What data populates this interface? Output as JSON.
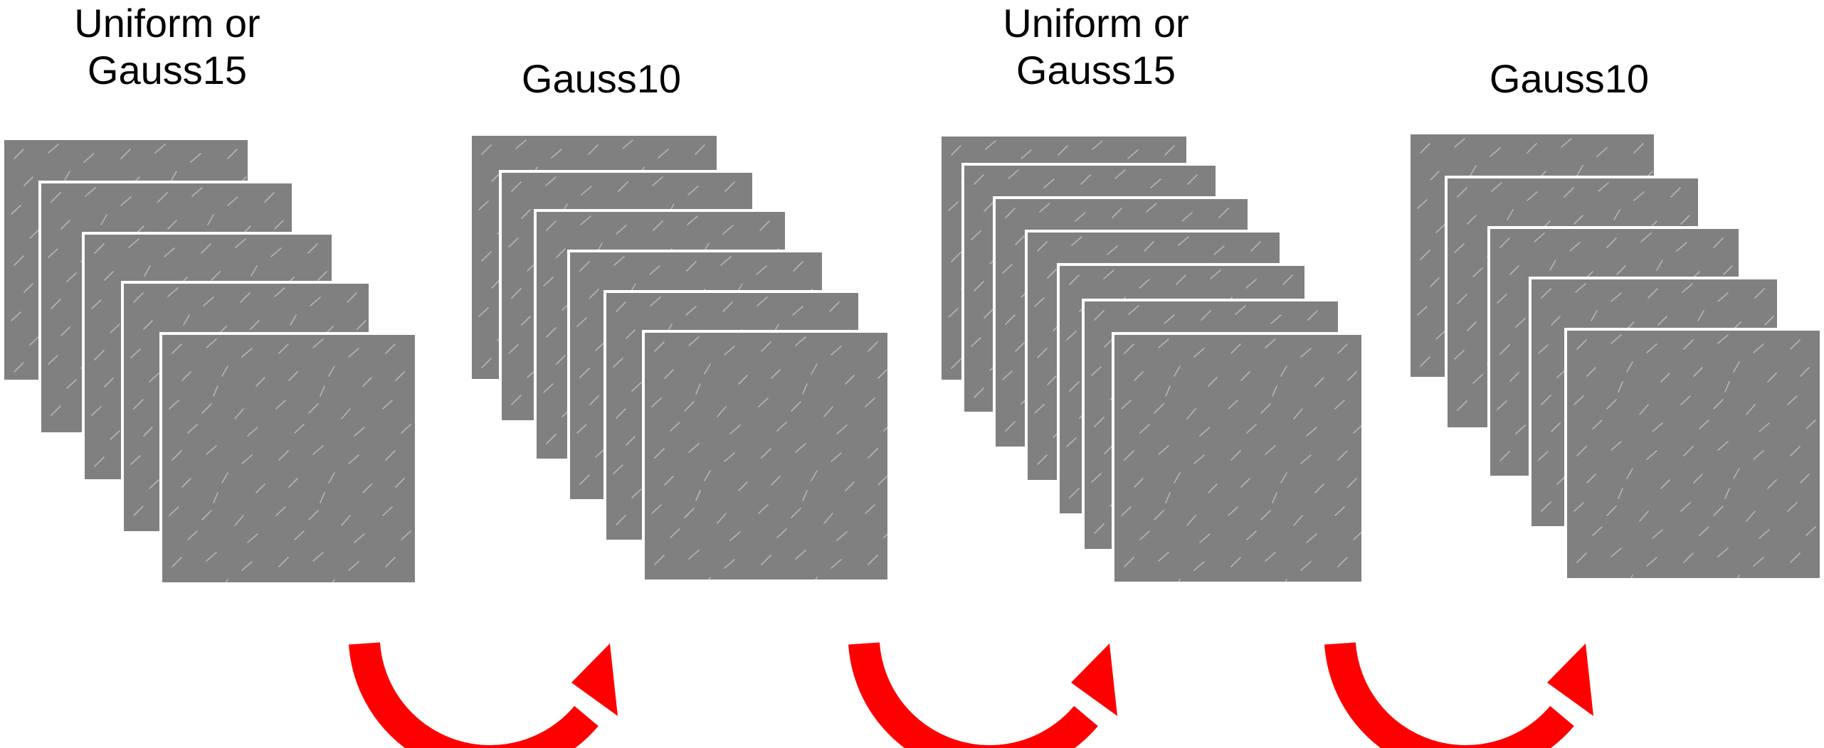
{
  "colors": {
    "card_fill": "#808080",
    "card_border": "#ffffff",
    "texture_marks": "#b4b4b4",
    "arrow": "#ff0000",
    "label_text": "#000000"
  },
  "stacks": [
    {
      "label_line1": "Uniform or",
      "label_line2": "Gauss15",
      "frame_count": 5
    },
    {
      "label_line1": "",
      "label_line2": "Gauss10",
      "frame_count": 6
    },
    {
      "label_line1": "Uniform or",
      "label_line2": "Gauss15",
      "frame_count": 7
    },
    {
      "label_line1": "",
      "label_line2": "Gauss10",
      "frame_count": 5
    }
  ],
  "transitions": [
    {
      "icon": "curved-arrow-icon",
      "from_stack": 1,
      "to_stack": 2
    },
    {
      "icon": "curved-arrow-icon",
      "from_stack": 2,
      "to_stack": 3
    },
    {
      "icon": "curved-arrow-icon",
      "from_stack": 3,
      "to_stack": 4
    }
  ]
}
